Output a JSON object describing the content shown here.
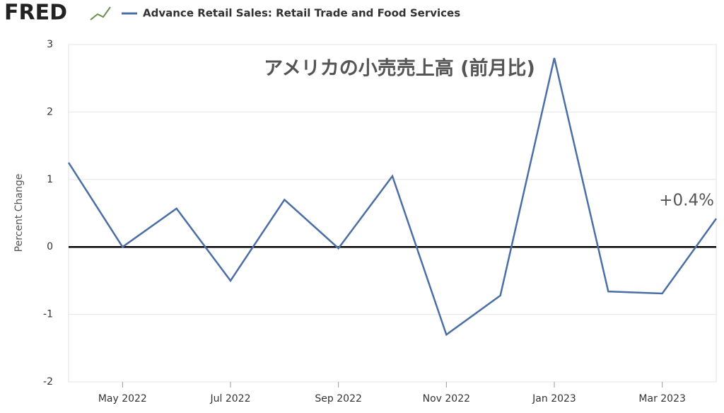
{
  "logo": "FRED",
  "chart_data": {
    "type": "line",
    "title": "アメリカの小売売上高 (前月比)",
    "annotation": "+0.4%",
    "y_label": "Percent Change",
    "categories": [
      null,
      "May 2022",
      null,
      "Jul 2022",
      null,
      "Sep 2022",
      null,
      "Nov 2022",
      null,
      "Jan 2023",
      null,
      "Mar 2023",
      null
    ],
    "series": [
      {
        "name": "Advance Retail Sales: Retail Trade and Food Services",
        "color": "#4b6fa5",
        "values": [
          1.25,
          0.0,
          0.57,
          -0.5,
          0.7,
          -0.02,
          1.05,
          -1.3,
          -0.72,
          2.8,
          -0.66,
          -0.69,
          0.42
        ]
      }
    ],
    "ylim": [
      -2,
      3
    ],
    "yticks": [
      -2,
      -1,
      0,
      1,
      2,
      3
    ],
    "grid": true
  }
}
